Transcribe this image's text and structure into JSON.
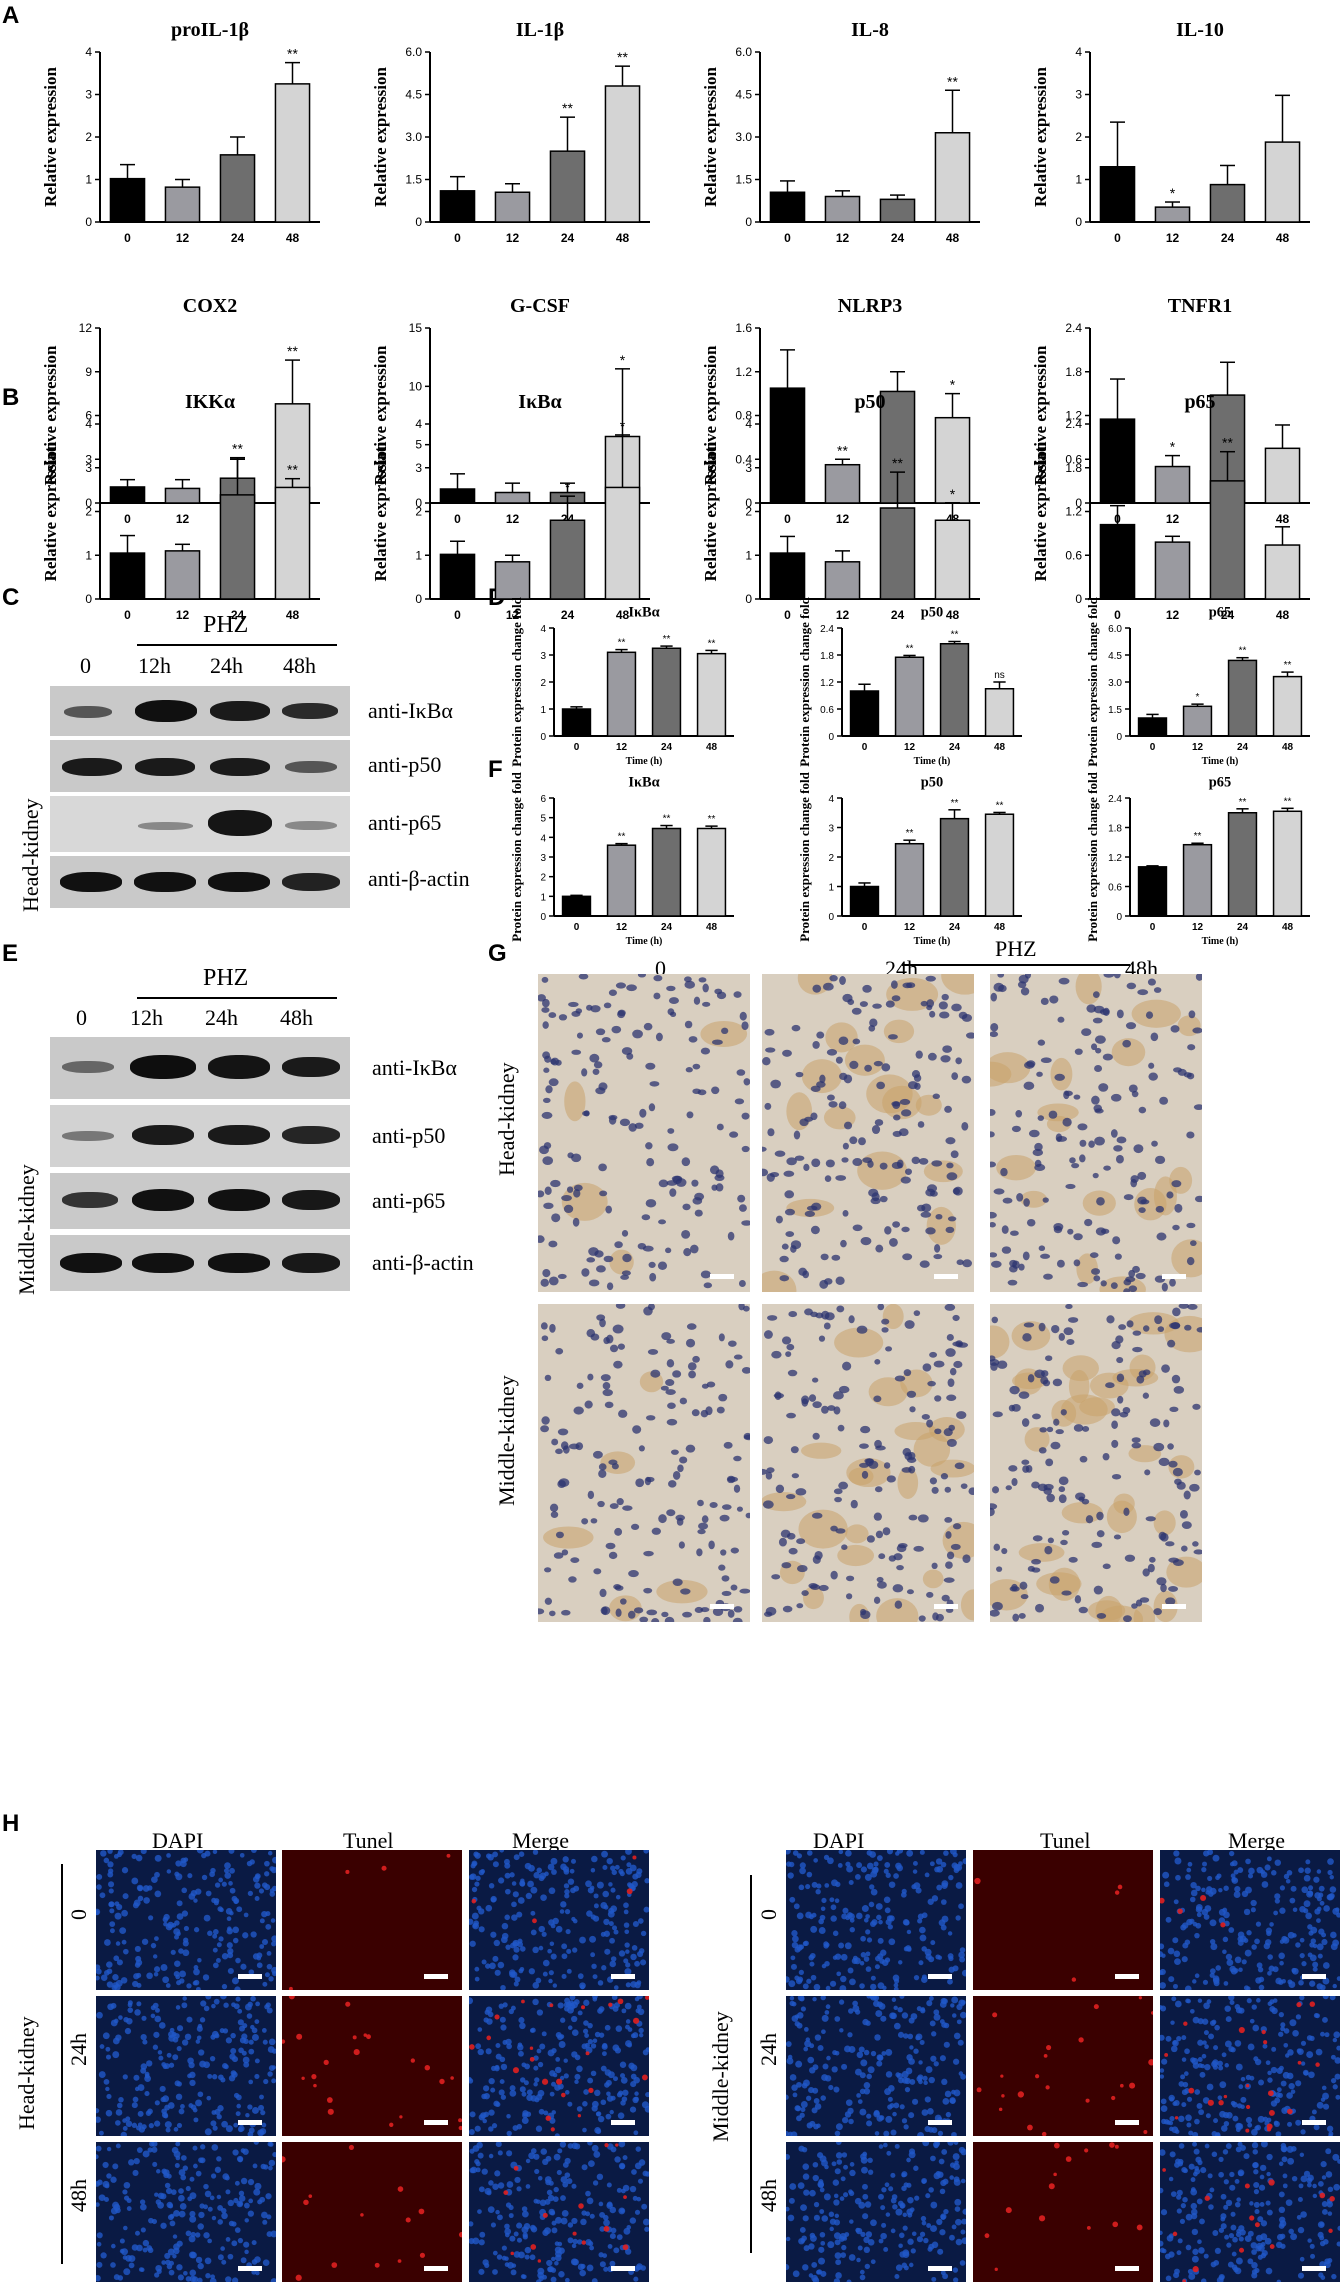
{
  "panel_letters": {
    "a": "A",
    "b": "B",
    "c": "C",
    "d": "D",
    "e": "E",
    "f": "F",
    "g": "G",
    "h": "H"
  },
  "ylabel_rel": "Relative expression",
  "ylabel_prot": "Protein expression change fold",
  "xlabel_time": "Time (h)",
  "chart_data": [
    {
      "id": "proil1b",
      "type": "bar",
      "title": "proIL-1β",
      "ylabel": "Relative expression",
      "categories": [
        "0",
        "12",
        "24",
        "48"
      ],
      "values": [
        1.02,
        0.82,
        1.58,
        3.25
      ],
      "errors": [
        0.33,
        0.18,
        0.42,
        0.5
      ],
      "sig": [
        "",
        "",
        "",
        "**"
      ],
      "ylim": [
        0,
        4
      ],
      "yticks": [
        "0",
        "1",
        "2",
        "3",
        "4"
      ]
    },
    {
      "id": "il1b",
      "type": "bar",
      "title": "IL-1β",
      "ylabel": "Relative expression",
      "categories": [
        "0",
        "12",
        "24",
        "48"
      ],
      "values": [
        1.1,
        1.05,
        2.5,
        4.8
      ],
      "errors": [
        0.5,
        0.3,
        1.2,
        0.7
      ],
      "sig": [
        "",
        "",
        "**",
        "**"
      ],
      "ylim": [
        0,
        6
      ],
      "yticks": [
        "0",
        "1.5",
        "3.0",
        "4.5",
        "6.0"
      ]
    },
    {
      "id": "il8",
      "type": "bar",
      "title": "IL-8",
      "ylabel": "Relative expression",
      "categories": [
        "0",
        "12",
        "24",
        "48"
      ],
      "values": [
        1.05,
        0.9,
        0.8,
        3.15
      ],
      "errors": [
        0.4,
        0.2,
        0.15,
        1.5
      ],
      "sig": [
        "",
        "",
        "",
        "**"
      ],
      "ylim": [
        0,
        6
      ],
      "yticks": [
        "0",
        "1.5",
        "3.0",
        "4.5",
        "6.0"
      ]
    },
    {
      "id": "il10",
      "type": "bar",
      "title": "IL-10",
      "ylabel": "Relative expression",
      "categories": [
        "0",
        "12",
        "24",
        "48"
      ],
      "values": [
        1.3,
        0.35,
        0.88,
        1.88
      ],
      "errors": [
        1.05,
        0.12,
        0.45,
        1.1
      ],
      "sig": [
        "",
        "*",
        "",
        ""
      ],
      "ylim": [
        0,
        4
      ],
      "yticks": [
        "0",
        "1",
        "2",
        "3",
        "4"
      ]
    },
    {
      "id": "cox2",
      "type": "bar",
      "title": "COX2",
      "ylabel": "Relative expression",
      "categories": [
        "0",
        "12",
        "24",
        "48"
      ],
      "values": [
        1.1,
        1.0,
        1.7,
        6.8
      ],
      "errors": [
        0.5,
        0.6,
        1.3,
        3.0
      ],
      "sig": [
        "",
        "",
        "",
        "**"
      ],
      "ylim": [
        0,
        12
      ],
      "yticks": [
        "0",
        "3",
        "6",
        "9",
        "12"
      ]
    },
    {
      "id": "gcsf",
      "type": "bar",
      "title": "G-CSF",
      "ylabel": "Relative expression",
      "categories": [
        "0",
        "12",
        "24",
        "48"
      ],
      "values": [
        1.2,
        0.9,
        0.9,
        5.7
      ],
      "errors": [
        1.3,
        0.8,
        0.8,
        5.8
      ],
      "sig": [
        "",
        "",
        "",
        "*"
      ],
      "ylim": [
        0,
        15
      ],
      "yticks": [
        "0",
        "5",
        "10",
        "15"
      ]
    },
    {
      "id": "nlrp3",
      "type": "bar",
      "title": "NLRP3",
      "ylabel": "Relative expression",
      "categories": [
        "0",
        "12",
        "24",
        "48"
      ],
      "values": [
        1.05,
        0.35,
        1.02,
        0.78
      ],
      "errors": [
        0.35,
        0.05,
        0.18,
        0.22
      ],
      "sig": [
        "",
        "**",
        "",
        "*"
      ],
      "ylim": [
        0,
        1.6
      ],
      "yticks": [
        "0",
        "0.4",
        "0.8",
        "1.2",
        "1.6"
      ]
    },
    {
      "id": "tnfr1",
      "type": "bar",
      "title": "TNFR1",
      "ylabel": "Relative expression",
      "categories": [
        "0",
        "12",
        "24",
        "48"
      ],
      "values": [
        1.15,
        0.5,
        1.48,
        0.75
      ],
      "errors": [
        0.55,
        0.15,
        0.45,
        0.32
      ],
      "sig": [
        "",
        "*",
        "",
        ""
      ],
      "ylim": [
        0,
        2.4
      ],
      "yticks": [
        "0",
        "0.6",
        "1.2",
        "1.8",
        "2.4"
      ]
    },
    {
      "id": "ikka",
      "type": "bar",
      "title": "IKKα",
      "ylabel": "Relative expression",
      "categories": [
        "0",
        "12",
        "24",
        "48"
      ],
      "values": [
        1.05,
        1.1,
        2.38,
        2.55
      ],
      "errors": [
        0.4,
        0.15,
        0.85,
        0.2
      ],
      "sig": [
        "",
        "",
        "**",
        "**"
      ],
      "ylim": [
        0,
        4
      ],
      "yticks": [
        "0",
        "1",
        "2",
        "3",
        "4"
      ]
    },
    {
      "id": "ikba",
      "type": "bar",
      "title": "IκBα",
      "ylabel": "Relative expression",
      "categories": [
        "0",
        "12",
        "24",
        "48"
      ],
      "values": [
        1.02,
        0.85,
        1.8,
        2.55
      ],
      "errors": [
        0.3,
        0.15,
        0.55,
        1.2
      ],
      "sig": [
        "",
        "",
        "*",
        "*"
      ],
      "ylim": [
        0,
        4
      ],
      "yticks": [
        "0",
        "1",
        "2",
        "3",
        "4"
      ]
    },
    {
      "id": "p50",
      "type": "bar",
      "title": "p50",
      "ylabel": "Relative expression",
      "categories": [
        "0",
        "12",
        "24",
        "48"
      ],
      "values": [
        1.05,
        0.85,
        2.08,
        1.8
      ],
      "errors": [
        0.38,
        0.25,
        0.82,
        0.4
      ],
      "sig": [
        "",
        "",
        "**",
        "*"
      ],
      "ylim": [
        0,
        4
      ],
      "yticks": [
        "0",
        "1",
        "2",
        "3",
        "4"
      ]
    },
    {
      "id": "p65",
      "type": "bar",
      "title": "p65",
      "ylabel": "Relative expression",
      "categories": [
        "0",
        "12",
        "24",
        "48"
      ],
      "values": [
        1.02,
        0.78,
        1.62,
        0.74
      ],
      "errors": [
        0.26,
        0.08,
        0.4,
        0.25
      ],
      "sig": [
        "",
        "",
        "**",
        ""
      ],
      "ylim": [
        0,
        2.4
      ],
      "yticks": [
        "0",
        "0.6",
        "1.2",
        "1.8",
        "2.4"
      ]
    },
    {
      "id": "d_ikba",
      "type": "bar",
      "title": "IκBα",
      "ylabel": "Protein expression change fold",
      "xlabel": "Time (h)",
      "categories": [
        "0",
        "12",
        "24",
        "48"
      ],
      "values": [
        1.0,
        3.1,
        3.25,
        3.05
      ],
      "errors": [
        0.08,
        0.1,
        0.08,
        0.12
      ],
      "sig": [
        "",
        "**",
        "**",
        "**"
      ],
      "ylim": [
        0,
        4
      ],
      "yticks": [
        "0",
        "1",
        "2",
        "3",
        "4"
      ]
    },
    {
      "id": "d_p50",
      "type": "bar",
      "title": "p50",
      "ylabel": "Protein expression change fold",
      "xlabel": "Time (h)",
      "categories": [
        "0",
        "12",
        "24",
        "48"
      ],
      "values": [
        1.0,
        1.75,
        2.05,
        1.05
      ],
      "errors": [
        0.15,
        0.04,
        0.05,
        0.15
      ],
      "sig": [
        "",
        "**",
        "**",
        "ns"
      ],
      "ylim": [
        0,
        2.4
      ],
      "yticks": [
        "0",
        "0.6",
        "1.2",
        "1.8",
        "2.4"
      ]
    },
    {
      "id": "d_p65",
      "type": "bar",
      "title": "p65",
      "ylabel": "Protein expression change fold",
      "xlabel": "Time (h)",
      "categories": [
        "0",
        "12",
        "24",
        "48"
      ],
      "values": [
        1.0,
        1.65,
        4.2,
        3.3
      ],
      "errors": [
        0.2,
        0.12,
        0.15,
        0.25
      ],
      "sig": [
        "",
        "*",
        "**",
        "**"
      ],
      "ylim": [
        0,
        6
      ],
      "yticks": [
        "0",
        "1.5",
        "3.0",
        "4.5",
        "6.0"
      ]
    },
    {
      "id": "f_ikba",
      "type": "bar",
      "title": "IκBα",
      "ylabel": "Protein expression change fold",
      "xlabel": "Time (h)",
      "categories": [
        "0",
        "12",
        "24",
        "48"
      ],
      "values": [
        1.0,
        3.6,
        4.45,
        4.45
      ],
      "errors": [
        0.05,
        0.08,
        0.15,
        0.12
      ],
      "sig": [
        "",
        "**",
        "**",
        "**"
      ],
      "ylim": [
        0,
        6
      ],
      "yticks": [
        "0",
        "1",
        "2",
        "3",
        "4",
        "5",
        "6"
      ]
    },
    {
      "id": "f_p50",
      "type": "bar",
      "title": "p50",
      "ylabel": "Protein expression change fold",
      "xlabel": "Time (h)",
      "categories": [
        "0",
        "12",
        "24",
        "48"
      ],
      "values": [
        1.0,
        2.45,
        3.3,
        3.45
      ],
      "errors": [
        0.12,
        0.12,
        0.3,
        0.06
      ],
      "sig": [
        "",
        "**",
        "**",
        "**"
      ],
      "ylim": [
        0,
        4
      ],
      "yticks": [
        "0",
        "1",
        "2",
        "3",
        "4"
      ]
    },
    {
      "id": "f_p65",
      "type": "bar",
      "title": "p65",
      "ylabel": "Protein expression change fold",
      "xlabel": "Time (h)",
      "categories": [
        "0",
        "12",
        "24",
        "48"
      ],
      "values": [
        1.0,
        1.45,
        2.1,
        2.13
      ],
      "errors": [
        0.02,
        0.03,
        0.08,
        0.06
      ],
      "sig": [
        "",
        "**",
        "**",
        "**"
      ],
      "ylim": [
        0,
        2.4
      ],
      "yticks": [
        "0",
        "0.6",
        "1.2",
        "1.8",
        "2.4"
      ]
    }
  ],
  "blot_c": {
    "treatment": "PHZ",
    "lanes": [
      "0",
      "12h",
      "24h",
      "48h"
    ],
    "tissue": "Head-kidney",
    "rows": [
      "anti-IκBα",
      "anti-p50",
      "anti-p65",
      "anti-β-actin"
    ]
  },
  "blot_e": {
    "treatment": "PHZ",
    "lanes": [
      "0",
      "12h",
      "24h",
      "48h"
    ],
    "tissue": "Middle-kidney",
    "rows": [
      "anti-IκBα",
      "anti-p50",
      "anti-p65",
      "anti-β-actin"
    ]
  },
  "ihc_g": {
    "treatment": "PHZ",
    "cols": [
      "0",
      "24h",
      "48h"
    ],
    "rows": [
      "Head-kidney",
      "Middle-kidney"
    ]
  },
  "tunel_h": {
    "cols": [
      "DAPI",
      "Tunel",
      "Merge"
    ],
    "rows": [
      "0",
      "24h",
      "48h"
    ],
    "left_tissue": "Head-kidney",
    "right_tissue": "Middle-kidney"
  },
  "colors": {
    "bar_fills": [
      "#000000",
      "#9a9aa0",
      "#6e6e6e",
      "#d4d4d4"
    ],
    "dapi": "#2058c8",
    "tunel": "#3a0000",
    "tunel_dot": "#e02020",
    "ihc_bg": "#d9cfc0",
    "ihc_nuclei": "#2c3470"
  }
}
